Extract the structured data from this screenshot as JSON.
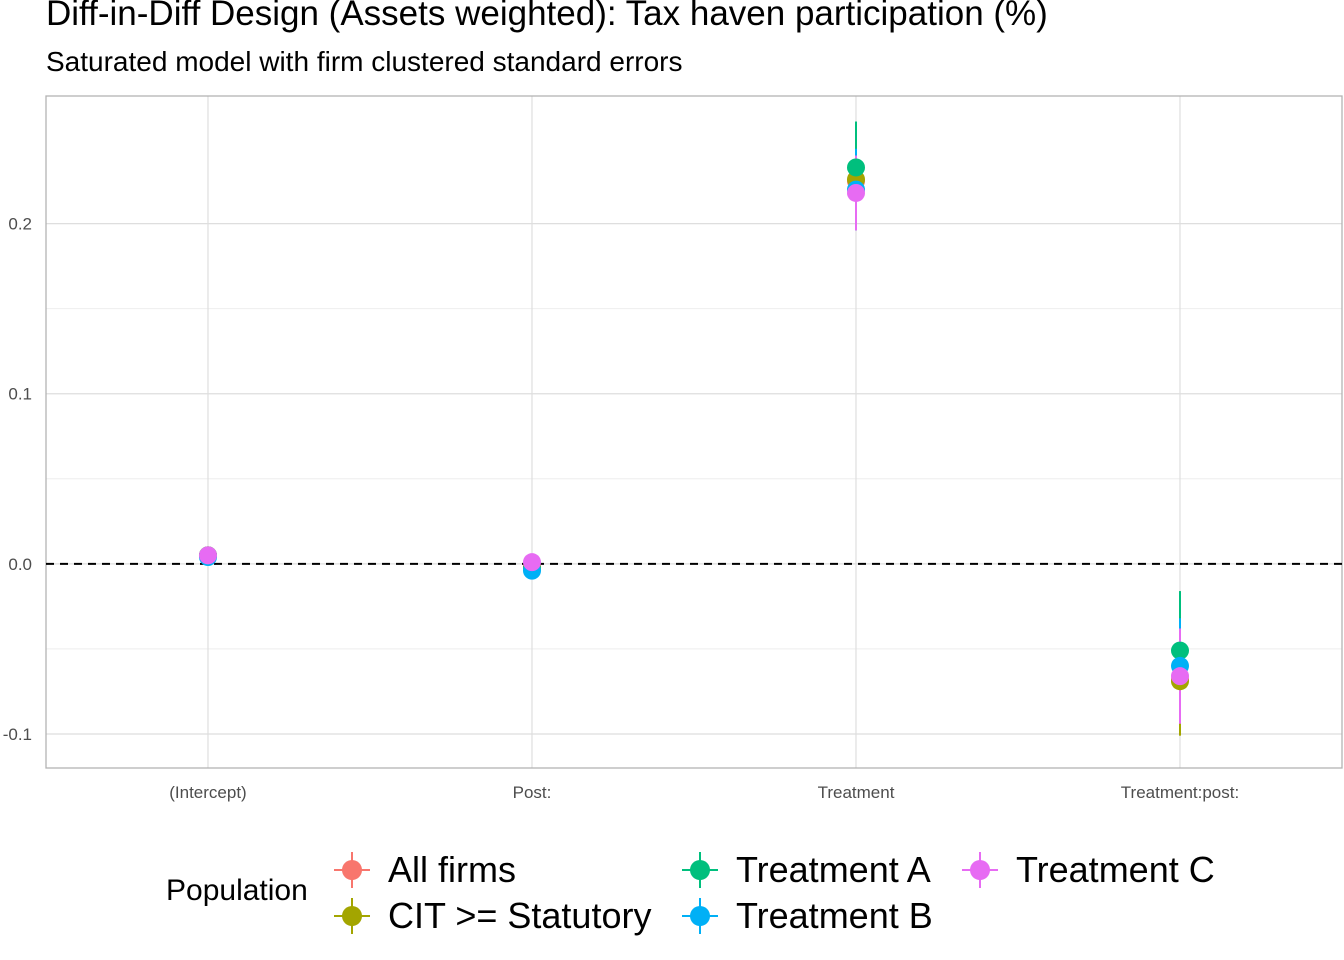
{
  "chart_data": {
    "type": "scatter",
    "title": "Diff-in-Diff Design (Assets weighted): Tax haven participation (%)",
    "subtitle": "Saturated model with firm clustered standard errors",
    "categories": [
      "(Intercept)",
      "Post:",
      "Treatment",
      "Treatment:post:"
    ],
    "ylim": [
      -0.12,
      0.275
    ],
    "yticks": [
      -0.1,
      0.0,
      0.1,
      0.2
    ],
    "ytick_labels": [
      "-0.1",
      "0.0",
      "0.1",
      "0.2"
    ],
    "reference_line": 0,
    "grid": true,
    "legend": {
      "title": "Population",
      "position": "bottom"
    },
    "series": [
      {
        "name": "All firms",
        "color": "#F8766D",
        "values": [
          0.005,
          -0.002,
          0.225,
          -0.068
        ],
        "lower": [
          0.003,
          -0.005,
          0.2,
          -0.095
        ],
        "upper": [
          0.007,
          0.001,
          0.25,
          -0.04
        ]
      },
      {
        "name": "CIT >= Statutory",
        "color": "#A3A500",
        "values": [
          0.005,
          -0.002,
          0.226,
          -0.069
        ],
        "lower": [
          0.002,
          -0.006,
          0.196,
          -0.101
        ],
        "upper": [
          0.008,
          0.002,
          0.256,
          -0.037
        ]
      },
      {
        "name": "Treatment A",
        "color": "#00BF7D",
        "values": [
          0.005,
          -0.003,
          0.233,
          -0.051
        ],
        "lower": [
          0.002,
          -0.006,
          0.206,
          -0.086
        ],
        "upper": [
          0.008,
          0.0,
          0.26,
          -0.016
        ]
      },
      {
        "name": "Treatment B",
        "color": "#00B0F6",
        "values": [
          0.004,
          -0.004,
          0.22,
          -0.06
        ],
        "lower": [
          0.001,
          -0.008,
          0.196,
          -0.088
        ],
        "upper": [
          0.007,
          0.0,
          0.244,
          -0.032
        ]
      },
      {
        "name": "Treatment C",
        "color": "#E76BF3",
        "values": [
          0.005,
          0.001,
          0.218,
          -0.066
        ],
        "lower": [
          0.002,
          -0.002,
          0.196,
          -0.094
        ],
        "upper": [
          0.008,
          0.004,
          0.24,
          -0.038
        ]
      }
    ]
  }
}
